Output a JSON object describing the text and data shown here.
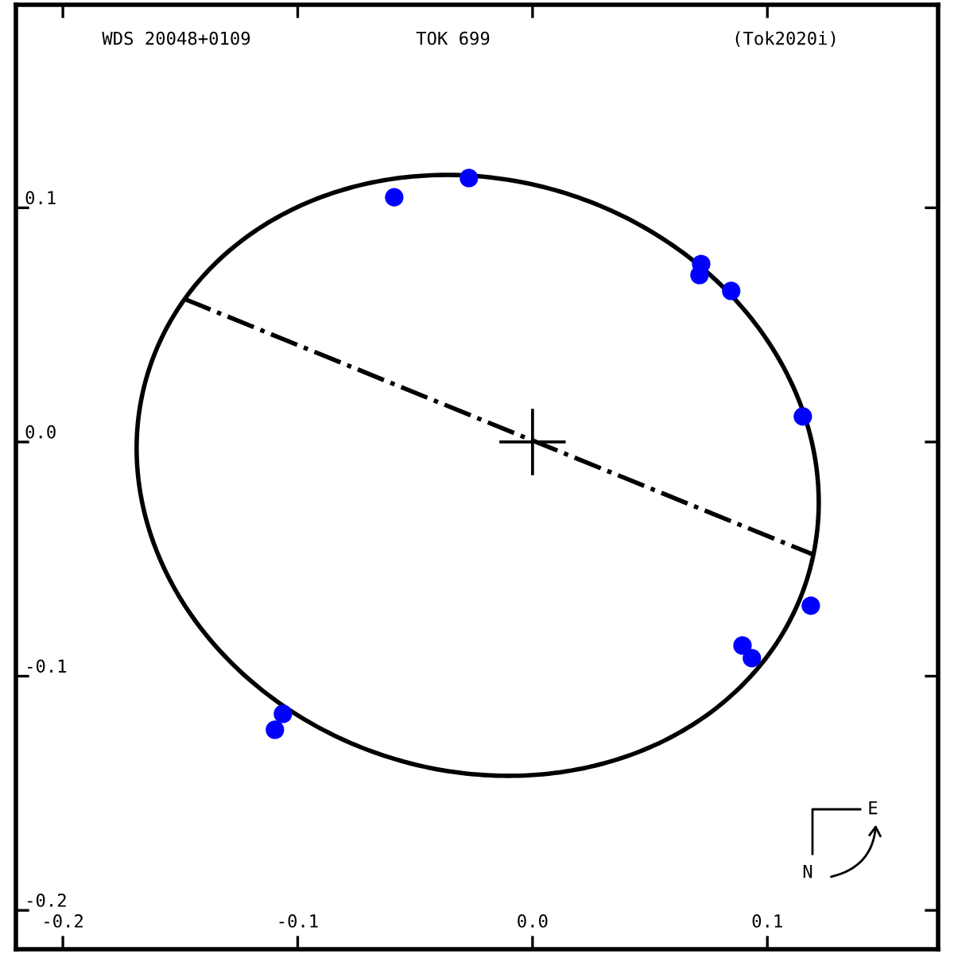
{
  "chart_data": {
    "type": "scatter",
    "title": "TOK 699",
    "annotations": [
      "WDS 20048+0109",
      "(Tok2020i)",
      "N",
      "E"
    ],
    "xlim": [
      -0.22,
      0.1727
    ],
    "ylim": [
      -0.2166,
      0.1867
    ],
    "xticks": [
      -0.2,
      -0.1,
      {
        "value": 0,
        "label": "0.0"
      },
      0.1
    ],
    "yticks": [
      -0.2,
      -0.1,
      {
        "value": 0,
        "label": "0.0"
      },
      0.1
    ],
    "grid": false,
    "legend": false,
    "series": [
      {
        "type": "line",
        "color": "#000000",
        "line_style": "dashdot",
        "marker": "none",
        "x": [
          -0.1483,
          0.1198
        ],
        "values": [
          0.0611,
          -0.0482
        ]
      },
      {
        "color": "#0000ff",
        "marker": "circle",
        "x": [
          -0.0589,
          -0.0271,
          0.0718,
          0.0711,
          0.0846,
          0.1151,
          0.1185,
          0.0894,
          0.0934,
          -0.1063,
          -0.1097
        ],
        "values": [
          0.1045,
          0.1127,
          0.076,
          0.0713,
          0.0645,
          0.0109,
          -0.0699,
          -0.0869,
          -0.0923,
          -0.1161,
          -0.1229
        ]
      },
      {
        "color": "#000000",
        "marker": "cross",
        "x": [
          0
        ],
        "values": [
          0
        ]
      }
    ]
  }
}
